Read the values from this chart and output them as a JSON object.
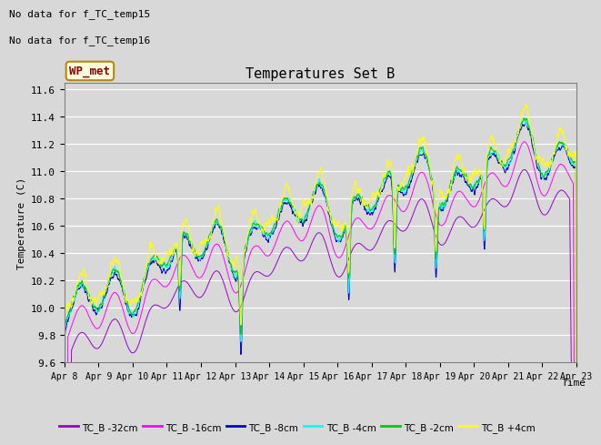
{
  "title": "Temperatures Set B",
  "xlabel": "Time",
  "ylabel": "Temperature (C)",
  "ylim": [
    9.6,
    11.65
  ],
  "background_color": "#d8d8d8",
  "no_data_text": [
    "No data for f_TC_temp15",
    "No data for f_TC_temp16"
  ],
  "wp_met_label": "WP_met",
  "x_tick_labels": [
    "Apr 8",
    "Apr 9",
    "Apr 10",
    "Apr 11",
    "Apr 12",
    "Apr 13",
    "Apr 14",
    "Apr 15",
    "Apr 16",
    "Apr 17",
    "Apr 18",
    "Apr 19",
    "Apr 20",
    "Apr 21",
    "Apr 22",
    "Apr 23"
  ],
  "series": [
    {
      "label": "TC_B -32cm",
      "color": "#9900cc"
    },
    {
      "label": "TC_B -16cm",
      "color": "#ff00ff"
    },
    {
      "label": "TC_B -8cm",
      "color": "#0000cc"
    },
    {
      "label": "TC_B -4cm",
      "color": "#00ffff"
    },
    {
      "label": "TC_B -2cm",
      "color": "#00cc00"
    },
    {
      "label": "TC_B +4cm",
      "color": "#ffff00"
    }
  ],
  "seed": 42,
  "n_points": 1440
}
